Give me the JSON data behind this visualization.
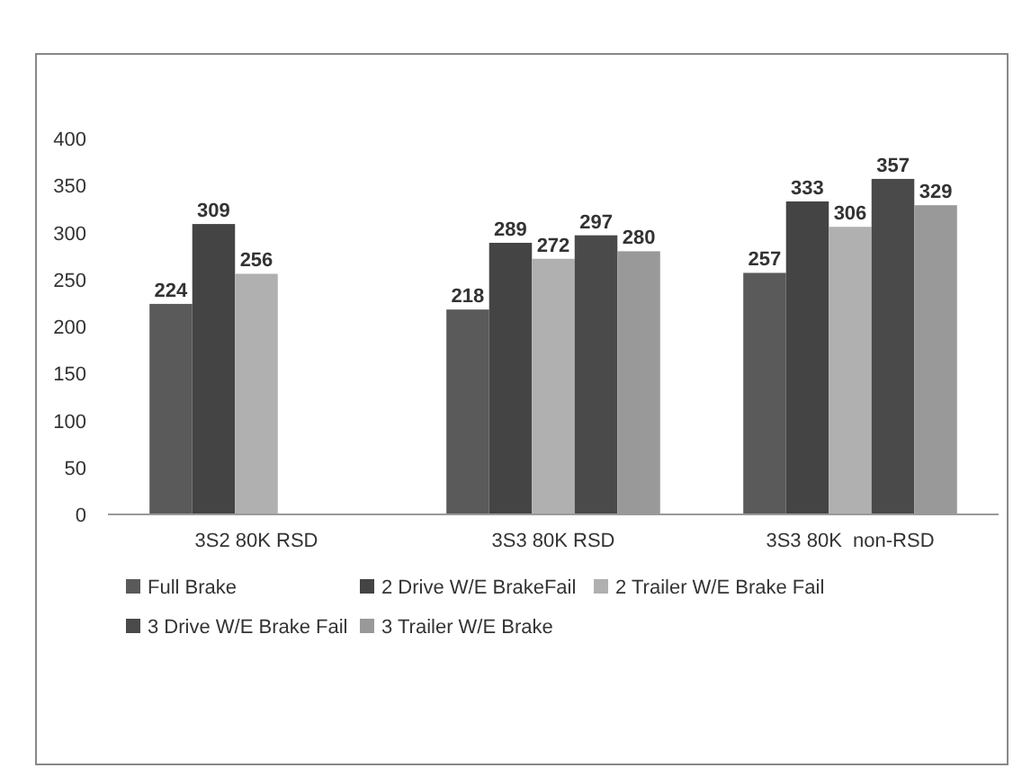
{
  "chart_data": {
    "type": "bar",
    "categories": [
      "3S2 80K RSD",
      "3S3 80K RSD",
      "3S3 80K  non-RSD"
    ],
    "series": [
      {
        "name": "Full Brake",
        "color": "#5a5a5a",
        "values": [
          224,
          218,
          257
        ]
      },
      {
        "name": "2 Drive W/E BrakeFail",
        "color": "#444444",
        "values": [
          309,
          289,
          333
        ]
      },
      {
        "name": "2 Trailer W/E Brake Fail",
        "color": "#b0b0b0",
        "values": [
          256,
          272,
          306
        ]
      },
      {
        "name": "3 Drive W/E Brake Fail",
        "color": "#4a4a4a",
        "values": [
          null,
          297,
          357
        ]
      },
      {
        "name": "3 Trailer W/E Brake",
        "color": "#999999",
        "values": [
          null,
          280,
          329
        ]
      }
    ],
    "ylim": [
      0,
      400
    ],
    "yticks": [
      0,
      50,
      100,
      150,
      200,
      250,
      300,
      350,
      400
    ],
    "grid": false,
    "legend": "bottom",
    "data_labels": true
  }
}
